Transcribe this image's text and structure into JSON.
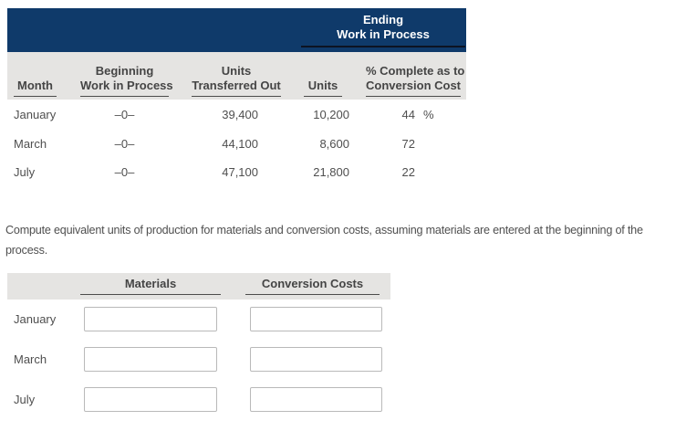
{
  "top_table": {
    "group_header": {
      "line1": "Ending",
      "line2": "Work in Process"
    },
    "columns": {
      "month": "Month",
      "beginning_line1": "Beginning",
      "beginning_line2": "Work in Process",
      "transferred_line1": "Units",
      "transferred_line2": "Transferred Out",
      "ending_units": "Units",
      "percent_line1": "% Complete as to",
      "percent_line2": "Conversion Cost"
    },
    "rows": [
      {
        "month": "January",
        "beginning_wip": "–0–",
        "units_transferred_out": "39,400",
        "ending_units": "10,200",
        "percent_complete": "44",
        "percent_symbol": "%"
      },
      {
        "month": "March",
        "beginning_wip": "–0–",
        "units_transferred_out": "44,100",
        "ending_units": "8,600",
        "percent_complete": "72",
        "percent_symbol": ""
      },
      {
        "month": "July",
        "beginning_wip": "–0–",
        "units_transferred_out": "47,100",
        "ending_units": "21,800",
        "percent_complete": "22",
        "percent_symbol": ""
      }
    ]
  },
  "instruction": {
    "line1": "Compute equivalent units of production for materials and conversion costs, assuming materials are entered at the beginning of the",
    "line2": "process."
  },
  "answer_table": {
    "columns": {
      "materials": "Materials",
      "conversion_costs": "Conversion Costs"
    },
    "rows": [
      {
        "month": "January",
        "materials_value": "",
        "conversion_value": ""
      },
      {
        "month": "March",
        "materials_value": "",
        "conversion_value": ""
      },
      {
        "month": "July",
        "materials_value": "",
        "conversion_value": ""
      }
    ]
  },
  "colors": {
    "header_navy": "#0f3a6a",
    "header_gray": "#e5e4e2",
    "text": "#4f4f4f",
    "underline": "#4c4c4c",
    "input_border": "#b9b9b9"
  }
}
